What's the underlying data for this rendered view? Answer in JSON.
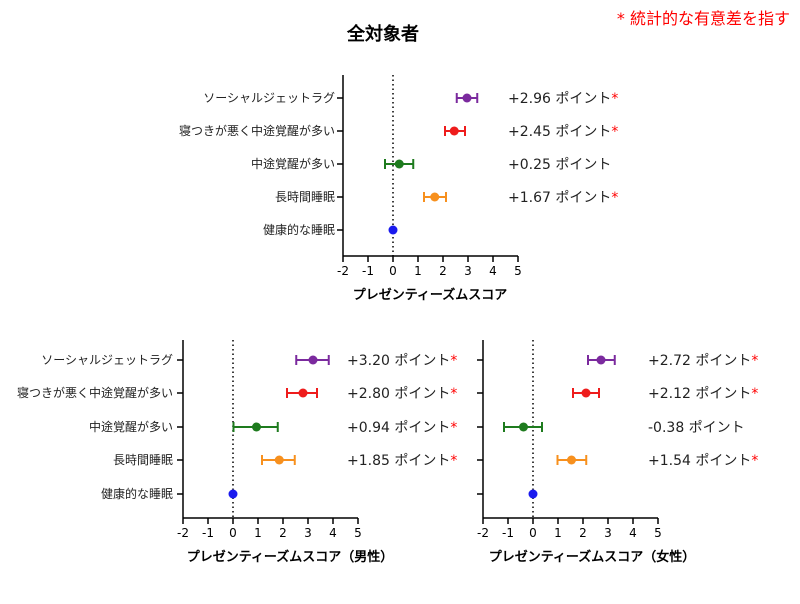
{
  "legend_note": "* 統計的な有意差を指す",
  "colors": {
    "significance": "#ff0000",
    "ソーシャルジェットラグ": "#7b2a9e",
    "寝つきが悪く中途覚醒が多い": "#ee1c1c",
    "中途覚醒が多い": "#1e7b1e",
    "長時間睡眠": "#f7901e",
    "健康的な睡眠": "#1a1aee"
  },
  "chart_data": [
    {
      "type": "forest",
      "title": "全対象者",
      "xlabel": "プレゼンティーズムスコア",
      "xlim": [
        -2,
        5
      ],
      "xticks": [
        "-2",
        "-1",
        "0",
        "1",
        "2",
        "3",
        "4",
        "5"
      ],
      "reference_line": 0,
      "show_category_labels": true,
      "rows": [
        {
          "label": "ソーシャルジェットラグ",
          "estimate": 2.96,
          "ci": [
            2.55,
            3.37
          ],
          "value_text": "+2.96 ポイント",
          "significant": true
        },
        {
          "label": "寝つきが悪く中途覚醒が多い",
          "estimate": 2.45,
          "ci": [
            2.08,
            2.88
          ],
          "value_text": "+2.45 ポイント",
          "significant": true
        },
        {
          "label": "中途覚醒が多い",
          "estimate": 0.25,
          "ci": [
            -0.32,
            0.81
          ],
          "value_text": "+0.25 ポイント",
          "significant": false
        },
        {
          "label": "長時間睡眠",
          "estimate": 1.67,
          "ci": [
            1.24,
            2.12
          ],
          "value_text": "+1.67 ポイント",
          "significant": true
        },
        {
          "label": "健康的な睡眠",
          "estimate": 0,
          "ci": null,
          "value_text": "",
          "significant": false
        }
      ]
    },
    {
      "type": "forest",
      "title": "",
      "xlabel": "プレゼンティーズムスコア（男性）",
      "xlim": [
        -2,
        5
      ],
      "xticks": [
        "-2",
        "-1",
        "0",
        "1",
        "2",
        "3",
        "4",
        "5"
      ],
      "reference_line": 0,
      "show_category_labels": true,
      "rows": [
        {
          "label": "ソーシャルジェットラグ",
          "estimate": 3.2,
          "ci": [
            2.53,
            3.83
          ],
          "value_text": "+3.20 ポイント",
          "significant": true
        },
        {
          "label": "寝つきが悪く中途覚醒が多い",
          "estimate": 2.8,
          "ci": [
            2.16,
            3.36
          ],
          "value_text": "+2.80 ポイント",
          "significant": true
        },
        {
          "label": "中途覚醒が多い",
          "estimate": 0.94,
          "ci": [
            0.02,
            1.79
          ],
          "value_text": "+0.94 ポイント",
          "significant": true
        },
        {
          "label": "長時間睡眠",
          "estimate": 1.85,
          "ci": [
            1.16,
            2.47
          ],
          "value_text": "+1.85 ポイント",
          "significant": true
        },
        {
          "label": "健康的な睡眠",
          "estimate": 0,
          "ci": null,
          "value_text": "",
          "significant": false
        }
      ]
    },
    {
      "type": "forest",
      "title": "",
      "xlabel": "プレゼンティーズムスコア（女性）",
      "xlim": [
        -2,
        5
      ],
      "xticks": [
        "-2",
        "-1",
        "0",
        "1",
        "2",
        "3",
        "4",
        "5"
      ],
      "reference_line": 0,
      "show_category_labels": false,
      "rows": [
        {
          "label": "ソーシャルジェットラグ",
          "estimate": 2.72,
          "ci": [
            2.2,
            3.27
          ],
          "value_text": "+2.72 ポイント",
          "significant": true
        },
        {
          "label": "寝つきが悪く中途覚醒が多い",
          "estimate": 2.12,
          "ci": [
            1.6,
            2.64
          ],
          "value_text": "+2.12 ポイント",
          "significant": true
        },
        {
          "label": "中途覚醒が多い",
          "estimate": -0.38,
          "ci": [
            -1.16,
            0.36
          ],
          "value_text": "-0.38 ポイント",
          "significant": false
        },
        {
          "label": "長時間睡眠",
          "estimate": 1.54,
          "ci": [
            0.98,
            2.13
          ],
          "value_text": "+1.54 ポイント",
          "significant": true
        },
        {
          "label": "健康的な睡眠",
          "estimate": 0,
          "ci": null,
          "value_text": "",
          "significant": false
        }
      ]
    }
  ]
}
